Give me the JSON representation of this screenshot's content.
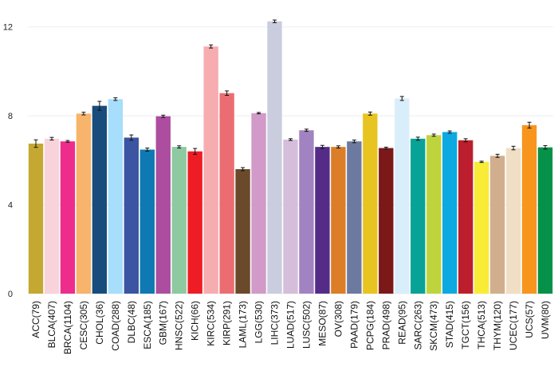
{
  "chart_data": {
    "type": "bar",
    "title": "",
    "xlabel": "",
    "ylabel": "",
    "ylim": [
      0,
      12.6
    ],
    "yticks": [
      0,
      4,
      8,
      12
    ],
    "grid": true,
    "categories": [
      "ACC(79)",
      "BLCA(407)",
      "BRCA(1104)",
      "CESC(305)",
      "CHOL(36)",
      "COAD(288)",
      "DLBC(48)",
      "ESCA(185)",
      "GBM(167)",
      "HNSC(522)",
      "KICH(66)",
      "KIRC(534)",
      "KIRP(291)",
      "LAML(173)",
      "LGG(530)",
      "LIHC(373)",
      "LUAD(517)",
      "LUSC(502)",
      "MESO(87)",
      "OV(308)",
      "PAAD(179)",
      "PCPG(184)",
      "PRAD(498)",
      "READ(95)",
      "SARC(263)",
      "SKCM(473)",
      "STAD(415)",
      "TGCT(156)",
      "THCA(513)",
      "THYM(120)",
      "UCEC(177)",
      "UCS(57)",
      "UVM(80)"
    ],
    "values": [
      6.75,
      6.97,
      6.85,
      8.1,
      8.45,
      8.75,
      7.02,
      6.48,
      7.98,
      6.6,
      6.4,
      11.12,
      9.02,
      5.6,
      8.12,
      12.25,
      6.93,
      7.35,
      6.6,
      6.6,
      6.85,
      8.1,
      6.55,
      8.78,
      6.97,
      7.13,
      7.27,
      6.9,
      5.93,
      6.2,
      6.55,
      7.58,
      6.58
    ],
    "errors": [
      0.17,
      0.06,
      0.04,
      0.06,
      0.2,
      0.06,
      0.12,
      0.07,
      0.05,
      0.05,
      0.13,
      0.07,
      0.1,
      0.07,
      0.03,
      0.06,
      0.04,
      0.05,
      0.07,
      0.05,
      0.06,
      0.07,
      0.04,
      0.09,
      0.07,
      0.05,
      0.05,
      0.07,
      0.03,
      0.07,
      0.08,
      0.13,
      0.08
    ],
    "colors": [
      "#C4A832",
      "#F9D3DC",
      "#EE2C8C",
      "#F7B46A",
      "#184C7C",
      "#A6DEFB",
      "#3C55A2",
      "#0E79B3",
      "#AD4D9F",
      "#8DCAA0",
      "#EE1D25",
      "#F7ACB0",
      "#EB6D72",
      "#6B4A2B",
      "#D29AC8",
      "#CACDDE",
      "#D4BEDB",
      "#A283C1",
      "#542C87",
      "#DC7D28",
      "#6D7AA0",
      "#E8C421",
      "#7B1818",
      "#D9EEFB",
      "#07A396",
      "#BDD43C",
      "#0DA9E1",
      "#BD1E2D",
      "#F8EC36",
      "#D1AE8D",
      "#F0DFC4",
      "#F7951D",
      "#069148"
    ]
  }
}
